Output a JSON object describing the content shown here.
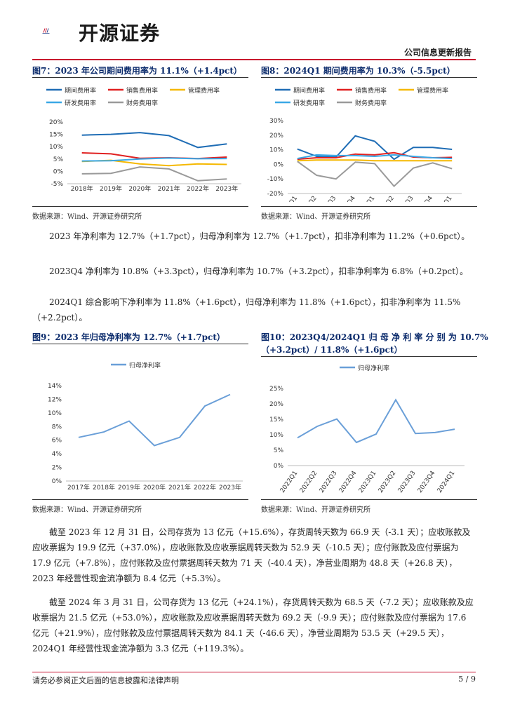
{
  "header": {
    "company": "开源证券",
    "report_type": "公司信息更新报告"
  },
  "figures": {
    "fig7": {
      "title": "图7：2023 年公司期间费用率为 11.1%（+1.4pct）",
      "source": "数据来源：Wind、开源证券研究所"
    },
    "fig8": {
      "title": "图8：2024Q1 期间费用率为 10.3%（-5.5pct）",
      "source": "数据来源：Wind、开源证券研究所"
    },
    "fig9": {
      "title": "图9：2023 年归母净利率为 12.7%（+1.7pct）",
      "source": "数据来源：Wind、开源证券研究所"
    },
    "fig10": {
      "title_line1": "图10：2023Q4/2024Q1  归 母 净 利 率 分 别 为  10.7%",
      "title_line2": "（+3.2pct）/ 11.8%（+1.6pct）",
      "source": "数据来源：Wind、开源证券研究所"
    }
  },
  "paragraphs": {
    "p1": "2023 年净利率为 12.7%（+1.7pct），归母净利率为 12.7%（+1.7pct），扣非净利率为 11.2%（+0.6pct）。",
    "p2": "2023Q4 净利率为 10.8%（+3.3pct），归母净利率为 10.7%（+3.2pct），扣非净利率为 6.8%（+0.2pct）。",
    "p3": "2024Q1 综合影响下净利率为 11.8%（+1.6pct），归母净利率为 11.8%（+1.6pct），扣非净利率为 11.5%（+2.2pct）。",
    "p4": "截至 2023 年 12 月 31 日，公司存货为 13 亿元（+15.6%），存货周转天数为 66.9 天（-3.1 天）；应收账款及应收票据为 19.9 亿元（+37.0%），应收账款及应收票据周转天数为 52.9 天（-10.5 天）；应付账款及应付票据为 17.9 亿元（+7.8%），应付账款及应付票据周转天数为 71 天（-40.4 天），净营业周期为 48.8 天（+26.8 天），2023 年经营性现金流净额为 8.4 亿元（+5.3%）。",
    "p5": "截至 2024 年 3 月 31 日，公司存货为 13 亿元（+24.1%），存货周转天数为 68.5 天（-7.2 天）；应收账款及应收票据为 21.5 亿元（+53.0%），应收账款及应收票据周转天数为 69.2 天（-9.9 天）；应付账款及应付票据为 17.6 亿元（+21.9%），应付账款及应付票据周转天数为 84.1 天（-46.6 天），净营业周期为 53.5 天（+29.5 天），2024Q1 年经营性现金流净额为 3.3 亿元（+119.3%）。"
  },
  "footer": {
    "disclaimer": "请务必参阅正文后面的信息披露和法律声明",
    "page": "5 / 9"
  },
  "chart_data": [
    {
      "type": "line",
      "categories": [
        "2018年",
        "2019年",
        "2020年",
        "2021年",
        "2022年",
        "2023年"
      ],
      "ylim": [
        -5,
        20
      ],
      "yticks": [
        "-5%",
        "0%",
        "5%",
        "10%",
        "15%",
        "20%"
      ],
      "legend": "top",
      "series": [
        {
          "name": "期间费用率",
          "color": "#1f6db5",
          "values": [
            14.7,
            15.0,
            15.7,
            14.5,
            9.7,
            11.1
          ]
        },
        {
          "name": "销售费用率",
          "color": "#e02020",
          "values": [
            7.5,
            7.1,
            5.3,
            5.5,
            5.2,
            5.8
          ]
        },
        {
          "name": "管理费用率",
          "color": "#f5b800",
          "values": [
            4.0,
            4.5,
            3.0,
            2.3,
            3.0,
            2.8
          ]
        },
        {
          "name": "研发费用率",
          "color": "#3aa8e6",
          "values": [
            4.2,
            4.3,
            5.0,
            5.4,
            5.1,
            5.2
          ]
        },
        {
          "name": "财务费用率",
          "color": "#9a9a9a",
          "values": [
            -1.0,
            -0.8,
            1.8,
            1.0,
            -3.8,
            -3.1
          ]
        }
      ]
    },
    {
      "type": "line",
      "categories": [
        "2022Q1",
        "2022Q2",
        "2022Q3",
        "2022Q4",
        "2023Q1",
        "2023Q2",
        "2023Q3",
        "2023Q4",
        "2024Q1"
      ],
      "ylim": [
        -20,
        30
      ],
      "yticks": [
        "-20%",
        "-10%",
        "0%",
        "10%",
        "20%",
        "30%"
      ],
      "legend": "top",
      "series": [
        {
          "name": "期间费用率",
          "color": "#1f6db5",
          "values": [
            10.5,
            5.5,
            5.0,
            19.5,
            15.8,
            3.5,
            11.6,
            11.6,
            10.3
          ]
        },
        {
          "name": "销售费用率",
          "color": "#e02020",
          "values": [
            3.5,
            4.5,
            4.5,
            7.0,
            6.5,
            8.0,
            5.0,
            4.5,
            4.8
          ]
        },
        {
          "name": "管理费用率",
          "color": "#f5b800",
          "values": [
            2.5,
            3.0,
            3.0,
            3.0,
            2.5,
            2.5,
            2.5,
            2.5,
            2.5
          ]
        },
        {
          "name": "研发费用率",
          "color": "#3aa8e6",
          "values": [
            4.0,
            6.5,
            6.0,
            6.0,
            5.5,
            6.5,
            5.5,
            4.5,
            4.0
          ]
        },
        {
          "name": "财务费用率",
          "color": "#9a9a9a",
          "values": [
            2.0,
            -7.5,
            -10.0,
            1.5,
            0.5,
            -15.0,
            -2.5,
            1.0,
            -3.0
          ]
        }
      ]
    },
    {
      "type": "line",
      "categories": [
        "2017年",
        "2018年",
        "2019年",
        "2020年",
        "2021年",
        "2022年",
        "2023年"
      ],
      "ylim": [
        0,
        14
      ],
      "yticks": [
        "0%",
        "2%",
        "4%",
        "6%",
        "8%",
        "10%",
        "12%",
        "14%"
      ],
      "legend": "top",
      "series": [
        {
          "name": "归母净利率",
          "color": "#6a9fd8",
          "values": [
            6.4,
            7.2,
            8.8,
            5.2,
            6.4,
            11.0,
            12.7
          ]
        }
      ]
    },
    {
      "type": "line",
      "categories": [
        "2022Q1",
        "2022Q2",
        "2022Q3",
        "2022Q4",
        "2023Q1",
        "2023Q2",
        "2023Q3",
        "2023Q4",
        "2024Q1"
      ],
      "ylim": [
        0,
        25
      ],
      "yticks": [
        "0%",
        "5%",
        "10%",
        "15%",
        "20%",
        "25%"
      ],
      "legend": "top",
      "series": [
        {
          "name": "归母净利率",
          "color": "#6a9fd8",
          "values": [
            9.0,
            12.7,
            15.1,
            7.5,
            10.2,
            21.3,
            10.4,
            10.7,
            11.8
          ]
        }
      ]
    }
  ]
}
